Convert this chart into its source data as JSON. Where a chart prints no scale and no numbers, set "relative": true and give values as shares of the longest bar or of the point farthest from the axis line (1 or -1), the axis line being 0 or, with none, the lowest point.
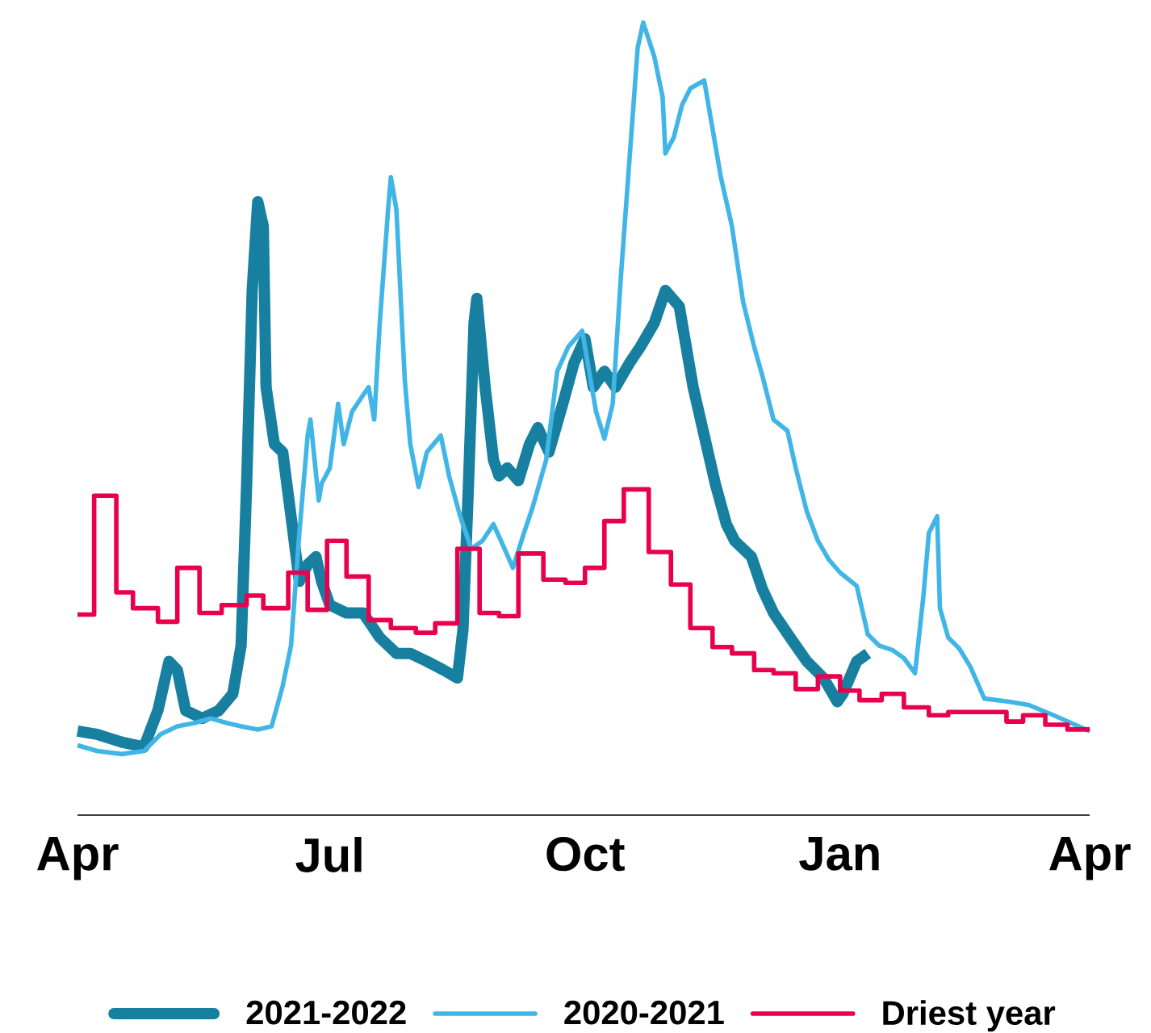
{
  "chart_data": {
    "type": "line",
    "relative": true,
    "legend": "bottom",
    "xlim": [
      "2021-04-01",
      "2022-04-01"
    ],
    "xticks": [
      {
        "value": "2021-04-01",
        "label": "Apr"
      },
      {
        "value": "2021-07-01",
        "label": "Jul"
      },
      {
        "value": "2021-10-01",
        "label": "Oct"
      },
      {
        "value": "2022-01-01",
        "label": "Jan"
      },
      {
        "value": "2022-04-01",
        "label": "Apr"
      }
    ],
    "series": [
      {
        "name": "2021-2022",
        "color": "#1780a1",
        "x": [
          "2021-04-01",
          "2021-04-08",
          "2021-04-17",
          "2021-04-25",
          "2021-04-30",
          "2021-05-04",
          "2021-05-07",
          "2021-05-10",
          "2021-05-16",
          "2021-05-22",
          "2021-05-27",
          "2021-05-30",
          "2021-06-01",
          "2021-06-03",
          "2021-06-05",
          "2021-06-07",
          "2021-06-08",
          "2021-06-11",
          "2021-06-14",
          "2021-06-17",
          "2021-06-20",
          "2021-06-23",
          "2021-06-26",
          "2021-06-28",
          "2021-07-01",
          "2021-07-07",
          "2021-07-13",
          "2021-07-19",
          "2021-07-25",
          "2021-07-30",
          "2021-08-05",
          "2021-08-11",
          "2021-08-16",
          "2021-08-18",
          "2021-08-20",
          "2021-08-22",
          "2021-08-23",
          "2021-08-26",
          "2021-08-29",
          "2021-08-31",
          "2021-09-03",
          "2021-09-07",
          "2021-09-11",
          "2021-09-14",
          "2021-09-18",
          "2021-09-23",
          "2021-09-27",
          "2021-10-01",
          "2021-10-04",
          "2021-10-08",
          "2021-10-12",
          "2021-10-17",
          "2021-10-21",
          "2021-10-26",
          "2021-10-30",
          "2021-11-04",
          "2021-11-09",
          "2021-11-13",
          "2021-11-17",
          "2021-11-21",
          "2021-11-24",
          "2021-11-30",
          "2021-12-04",
          "2021-12-08",
          "2021-12-14",
          "2021-12-20",
          "2021-12-26",
          "2021-12-31",
          "2022-01-02",
          "2022-01-07",
          "2022-01-11"
        ],
        "values": [
          0.106,
          0.102,
          0.092,
          0.086,
          0.132,
          0.194,
          0.183,
          0.132,
          0.122,
          0.132,
          0.153,
          0.214,
          0.418,
          0.662,
          0.774,
          0.743,
          0.54,
          0.468,
          0.458,
          0.377,
          0.295,
          0.316,
          0.326,
          0.295,
          0.265,
          0.255,
          0.255,
          0.224,
          0.204,
          0.204,
          0.194,
          0.183,
          0.173,
          0.234,
          0.418,
          0.621,
          0.652,
          0.54,
          0.448,
          0.428,
          0.438,
          0.422,
          0.468,
          0.489,
          0.458,
          0.519,
          0.57,
          0.601,
          0.54,
          0.56,
          0.54,
          0.57,
          0.591,
          0.621,
          0.662,
          0.642,
          0.54,
          0.479,
          0.418,
          0.367,
          0.346,
          0.326,
          0.285,
          0.255,
          0.224,
          0.194,
          0.173,
          0.143,
          0.153,
          0.194,
          0.204
        ]
      },
      {
        "name": "2020-2021",
        "color": "#41b6e6",
        "x": [
          "2021-04-01",
          "2021-04-08",
          "2021-04-17",
          "2021-04-25",
          "2021-05-01",
          "2021-05-07",
          "2021-05-13",
          "2021-05-19",
          "2021-05-25",
          "2021-05-30",
          "2021-06-05",
          "2021-06-10",
          "2021-06-14",
          "2021-06-17",
          "2021-06-20",
          "2021-06-23",
          "2021-06-24",
          "2021-06-27",
          "2021-06-28",
          "2021-07-01",
          "2021-07-04",
          "2021-07-06",
          "2021-07-09",
          "2021-07-13",
          "2021-07-15",
          "2021-07-17",
          "2021-07-19",
          "2021-07-22",
          "2021-07-23",
          "2021-07-25",
          "2021-07-28",
          "2021-07-30",
          "2021-08-02",
          "2021-08-05",
          "2021-08-10",
          "2021-08-13",
          "2021-08-17",
          "2021-08-21",
          "2021-08-25",
          "2021-08-29",
          "2021-09-02",
          "2021-09-05",
          "2021-09-09",
          "2021-09-12",
          "2021-09-17",
          "2021-09-21",
          "2021-09-25",
          "2021-09-30",
          "2021-10-02",
          "2021-10-05",
          "2021-10-08",
          "2021-10-11",
          "2021-10-14",
          "2021-10-17",
          "2021-10-20",
          "2021-10-22",
          "2021-10-26",
          "2021-10-29",
          "2021-10-30",
          "2021-11-02",
          "2021-11-05",
          "2021-11-08",
          "2021-11-13",
          "2021-11-16",
          "2021-11-19",
          "2021-11-23",
          "2021-11-27",
          "2021-12-01",
          "2021-12-04",
          "2021-12-08",
          "2021-12-13",
          "2021-12-16",
          "2021-12-20",
          "2021-12-24",
          "2021-12-28",
          "2022-01-01",
          "2022-01-07",
          "2022-01-11",
          "2022-01-15",
          "2022-01-20",
          "2022-01-24",
          "2022-01-28",
          "2022-01-31",
          "2022-02-02",
          "2022-02-05",
          "2022-02-06",
          "2022-02-09",
          "2022-02-13",
          "2022-02-17",
          "2022-02-22",
          "2022-03-03",
          "2022-03-10",
          "2022-03-19",
          "2022-03-28",
          "2022-04-01"
        ],
        "values": [
          0.088,
          0.081,
          0.077,
          0.081,
          0.102,
          0.112,
          0.116,
          0.122,
          0.116,
          0.112,
          0.108,
          0.112,
          0.163,
          0.214,
          0.356,
          0.479,
          0.499,
          0.397,
          0.418,
          0.438,
          0.519,
          0.468,
          0.509,
          0.53,
          0.54,
          0.499,
          0.621,
          0.764,
          0.805,
          0.764,
          0.55,
          0.468,
          0.414,
          0.458,
          0.479,
          0.428,
          0.377,
          0.336,
          0.346,
          0.367,
          0.336,
          0.312,
          0.356,
          0.387,
          0.448,
          0.56,
          0.591,
          0.611,
          0.57,
          0.509,
          0.475,
          0.519,
          0.682,
          0.825,
          0.968,
          1,
          0.957,
          0.906,
          0.835,
          0.855,
          0.896,
          0.917,
          0.927,
          0.866,
          0.805,
          0.743,
          0.648,
          0.591,
          0.554,
          0.499,
          0.485,
          0.438,
          0.383,
          0.346,
          0.322,
          0.306,
          0.289,
          0.228,
          0.214,
          0.208,
          0.198,
          0.179,
          0.275,
          0.356,
          0.377,
          0.261,
          0.224,
          0.21,
          0.187,
          0.147,
          0.143,
          0.139,
          0.126,
          0.112,
          0.106
        ]
      },
      {
        "name": "Driest year",
        "type": "step",
        "color": "#e8004c",
        "x": [
          "2021-04-01",
          "2021-04-07",
          "2021-04-15",
          "2021-04-21",
          "2021-04-30",
          "2021-05-07",
          "2021-05-15",
          "2021-05-23",
          "2021-06-01",
          "2021-06-07",
          "2021-06-16",
          "2021-06-23",
          "2021-06-30",
          "2021-07-07",
          "2021-07-15",
          "2021-07-23",
          "2021-08-01",
          "2021-08-08",
          "2021-08-16",
          "2021-08-24",
          "2021-08-31",
          "2021-09-07",
          "2021-09-16",
          "2021-09-24",
          "2021-10-01",
          "2021-10-08",
          "2021-10-15",
          "2021-10-24",
          "2021-11-01",
          "2021-11-08",
          "2021-11-16",
          "2021-11-23",
          "2021-12-01",
          "2021-12-08",
          "2021-12-16",
          "2021-12-24",
          "2022-01-01",
          "2022-01-08",
          "2022-01-16",
          "2022-01-24",
          "2022-02-02",
          "2022-02-09",
          "2022-03-02",
          "2022-03-08",
          "2022-03-16",
          "2022-03-24",
          "2022-04-01"
        ],
        "values": [
          0.253,
          0.403,
          0.281,
          0.261,
          0.244,
          0.312,
          0.255,
          0.265,
          0.277,
          0.261,
          0.306,
          0.259,
          0.346,
          0.301,
          0.246,
          0.236,
          0.23,
          0.242,
          0.336,
          0.255,
          0.251,
          0.33,
          0.297,
          0.293,
          0.312,
          0.371,
          0.411,
          0.332,
          0.291,
          0.236,
          0.212,
          0.204,
          0.183,
          0.179,
          0.159,
          0.175,
          0.157,
          0.145,
          0.153,
          0.136,
          0.126,
          0.13,
          0.118,
          0.126,
          0.114,
          0.108,
          0.108
        ]
      }
    ]
  }
}
